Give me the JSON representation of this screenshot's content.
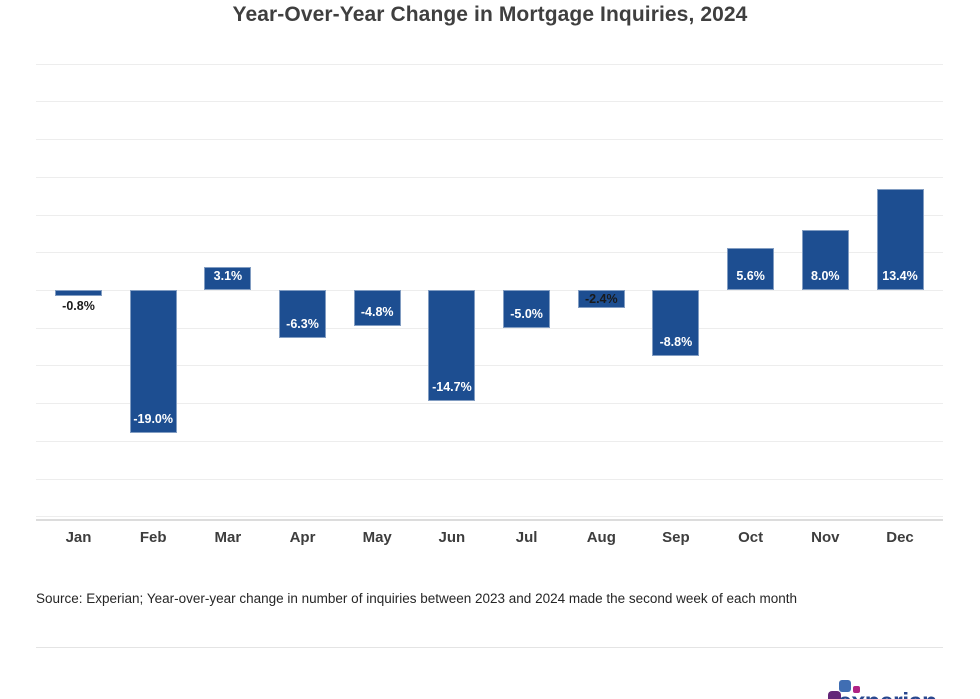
{
  "chart_data": {
    "type": "bar",
    "title": "Year-Over-Year Change in Mortgage Inquiries, 2024",
    "categories": [
      "Jan",
      "Feb",
      "Mar",
      "Apr",
      "May",
      "Jun",
      "Jul",
      "Aug",
      "Sep",
      "Oct",
      "Nov",
      "Dec"
    ],
    "values": [
      -0.8,
      -19.0,
      3.1,
      -6.3,
      -4.8,
      -14.7,
      -5.0,
      -2.4,
      -8.8,
      5.6,
      8.0,
      13.4
    ],
    "value_labels": [
      "-0.8%",
      "-19.0%",
      "3.1%",
      "-6.3%",
      "-4.8%",
      "-14.7%",
      "-5.0%",
      "-2.4%",
      "-8.8%",
      "5.6%",
      "8.0%",
      "13.4%"
    ],
    "label_positions": [
      "below",
      "inside",
      "inside",
      "inside",
      "inside",
      "inside",
      "inside",
      "center",
      "inside",
      "inside",
      "inside",
      "inside"
    ],
    "label_colors": [
      "#1a1a1a",
      "#ffffff",
      "#ffffff",
      "#ffffff",
      "#ffffff",
      "#ffffff",
      "#ffffff",
      "#1a1a1a",
      "#ffffff",
      "#ffffff",
      "#ffffff",
      "#ffffff"
    ],
    "unit": "%",
    "xlabel": "",
    "ylabel": "",
    "ylim": [
      -30,
      30
    ],
    "grid_step": 5,
    "grid": "horizontal",
    "legend": "none",
    "bar_color": "#1d4e91",
    "grid_color": "#ededed",
    "axis_line_color": "#dcdcdc",
    "source": "Source: Experian; Year-over-year change in number of inquiries between 2023 and 2024 made the second week of each month"
  },
  "footer": {
    "divider_color": "#e4e4e4",
    "logo": {
      "text": "experian",
      "text_color": "#29478f",
      "square_purple": "#632678",
      "square_blue": "#406eb3",
      "dot_magenta": "#b12384"
    }
  }
}
